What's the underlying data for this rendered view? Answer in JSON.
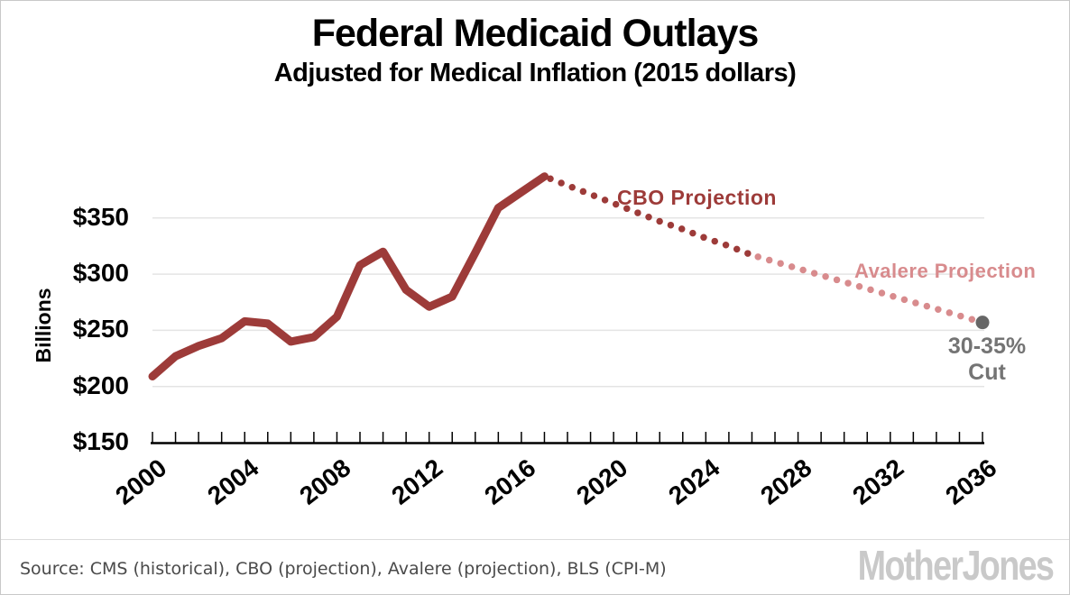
{
  "page": {
    "background": "#ffffff",
    "border_color": "#c9c9c9"
  },
  "header": {
    "title": "Federal Medicaid Outlays",
    "subtitle": "Adjusted for Medical Inflation (2015 dollars)"
  },
  "annotations": {
    "cbo_label": "CBO Projection",
    "avalere_label": "Avalere Projection",
    "cut_line1": "30-35%",
    "cut_line2": "Cut"
  },
  "footer": {
    "source_text": "Source: CMS (historical), CBO (projection), Avalere (projection), BLS (CPI-M)",
    "logo_text": "MotherJones"
  },
  "colors": {
    "historical_line": "#9d3b39",
    "cbo_projection": "#9d3b39",
    "avalere_projection": "#d88b8d",
    "cut_dot": "#666666",
    "cut_text": "#747474",
    "gridline": "#e4e4e4",
    "axis": "#000000",
    "source_text": "#4a4a4a",
    "logo": "#c9c9c9"
  },
  "chart_data": {
    "type": "line",
    "title": "Federal Medicaid Outlays",
    "subtitle": "Adjusted for Medical Inflation (2015 dollars)",
    "xlabel": "",
    "ylabel": "Billions",
    "units": "2015 dollars, billions",
    "x_range": [
      2000,
      2036
    ],
    "ylim": [
      150,
      400
    ],
    "grid": "horizontal",
    "y_axis_ticks": [
      {
        "label": "$150",
        "value": 150
      },
      {
        "label": "$200",
        "value": 200
      },
      {
        "label": "$250",
        "value": 250
      },
      {
        "label": "$300",
        "value": 300
      },
      {
        "label": "$350",
        "value": 350
      }
    ],
    "x_axis_ticks": [
      {
        "label": "2000",
        "value": 2000
      },
      {
        "label": "2004",
        "value": 2004
      },
      {
        "label": "2008",
        "value": 2008
      },
      {
        "label": "2012",
        "value": 2012
      },
      {
        "label": "2016",
        "value": 2016
      },
      {
        "label": "2020",
        "value": 2020
      },
      {
        "label": "2024",
        "value": 2024
      },
      {
        "label": "2028",
        "value": 2028
      },
      {
        "label": "2032",
        "value": 2032
      },
      {
        "label": "2036",
        "value": 2036
      }
    ],
    "minor_tick_interval": 1,
    "series": [
      {
        "name": "Historical (CMS)",
        "style": "solid",
        "color_key": "historical_line",
        "x": [
          2000,
          2001,
          2002,
          2003,
          2004,
          2005,
          2006,
          2007,
          2008,
          2009,
          2010,
          2011,
          2012,
          2013,
          2014,
          2015,
          2016,
          2017
        ],
        "values": [
          209,
          227,
          236,
          243,
          258,
          256,
          240,
          244,
          262,
          308,
          320,
          286,
          271,
          280,
          319,
          359,
          373,
          387
        ]
      },
      {
        "name": "CBO Projection",
        "style": "dotted",
        "color_key": "cbo_projection",
        "x": [
          2017,
          2018,
          2019,
          2020,
          2021,
          2022,
          2023,
          2024,
          2025,
          2026
        ],
        "values": [
          387,
          379,
          371,
          363,
          355,
          347,
          340,
          332,
          325,
          317
        ]
      },
      {
        "name": "Avalere Projection",
        "style": "dotted",
        "color_key": "avalere_projection",
        "x": [
          2026,
          2027,
          2028,
          2029,
          2030,
          2031,
          2032,
          2033,
          2034,
          2035,
          2036
        ],
        "values": [
          317,
          311,
          305,
          299,
          293,
          287,
          281,
          275,
          269,
          263,
          257
        ]
      }
    ],
    "end_marker": {
      "x": 2036,
      "value": 257,
      "color_key": "cut_dot",
      "label": "30-35% Cut"
    }
  }
}
